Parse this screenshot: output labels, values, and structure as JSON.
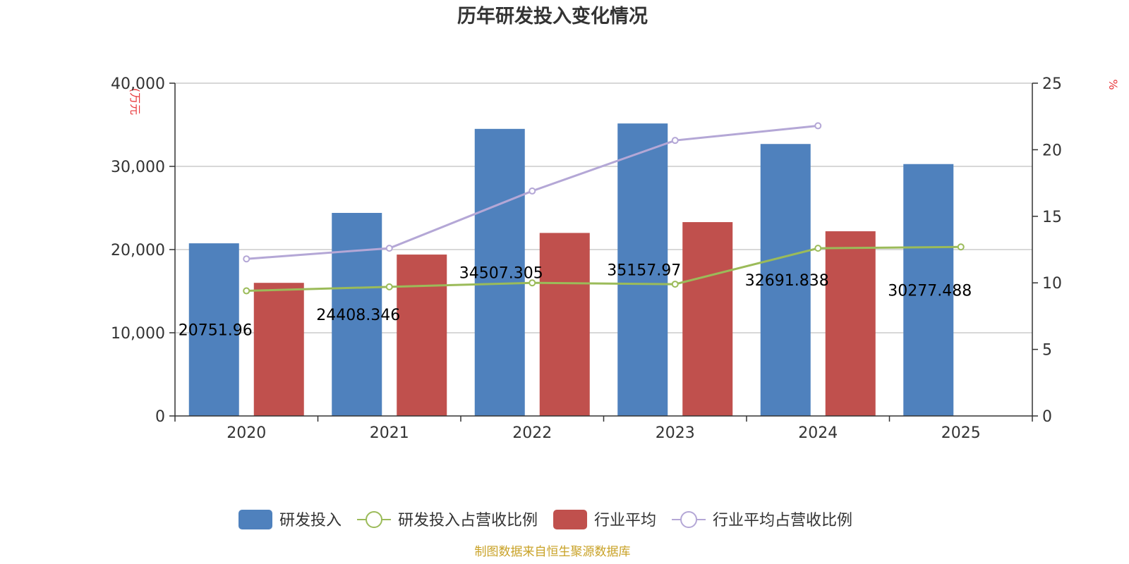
{
  "chart_data": {
    "type": "bar",
    "title": "历年研发投入变化情况",
    "categories": [
      "2020",
      "2021",
      "2022",
      "2023",
      "2024",
      "2025"
    ],
    "y_left": {
      "unit": "(万元",
      "min": 0,
      "max": 40000,
      "ticks": [
        "0",
        "10,000",
        "20,000",
        "30,000",
        "40,000"
      ]
    },
    "y_right": {
      "unit": "%",
      "min": 0,
      "max": 25,
      "ticks": [
        "0",
        "5",
        "10",
        "15",
        "20",
        "25"
      ]
    },
    "grid": true,
    "legend_position": "bottom-center",
    "series": [
      {
        "name": "研发投入",
        "type": "bar",
        "axis": "left",
        "color": "#4f81bd",
        "values": [
          20751.96,
          24408.346,
          34507.305,
          35157.97,
          32691.838,
          30277.488
        ],
        "labels": [
          "20751.96",
          "24408.346",
          "34507.305",
          "35157.97",
          "32691.838",
          "30277.488"
        ]
      },
      {
        "name": "研发投入占营收比例",
        "type": "line",
        "axis": "right",
        "color": "#9bbb59",
        "values": [
          9.4,
          9.7,
          10.0,
          9.9,
          12.6,
          12.7
        ]
      },
      {
        "name": "行业平均",
        "type": "bar",
        "axis": "left",
        "color": "#c0504d",
        "values": [
          16000,
          19400,
          22000,
          23300,
          22200,
          null
        ]
      },
      {
        "name": "行业平均占营收比例",
        "type": "line",
        "axis": "right",
        "color": "#b4a7d6",
        "values": [
          11.8,
          12.6,
          16.9,
          20.7,
          21.8,
          null
        ]
      }
    ],
    "source": "制图数据来自恒生聚源数据库"
  }
}
